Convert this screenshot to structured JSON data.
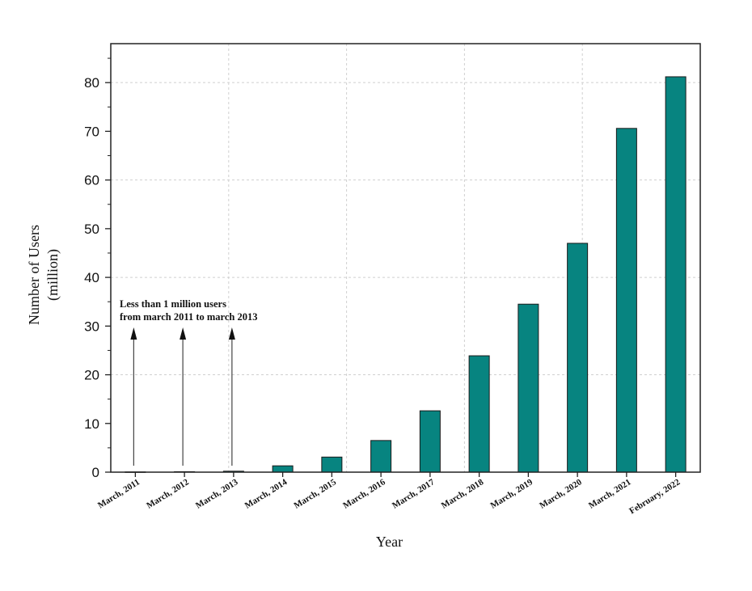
{
  "chart_data": {
    "type": "bar",
    "title": "",
    "xlabel": "Year",
    "ylabel_line1": "Number of Users",
    "ylabel_line2": "(million)",
    "categories": [
      "March, 2011",
      "March, 2012",
      "March, 2013",
      "March, 2014",
      "March, 2015",
      "March, 2016",
      "March, 2017",
      "March, 2018",
      "March, 2019",
      "March, 2020",
      "March, 2021",
      "February, 2022"
    ],
    "values": [
      0.05,
      0.1,
      0.2,
      1.3,
      3.1,
      6.5,
      12.6,
      23.9,
      34.5,
      47.0,
      70.6,
      81.2
    ],
    "ylim": [
      0,
      88
    ],
    "yticks": [
      "0",
      "10",
      "20",
      "30",
      "40",
      "50",
      "60",
      "70",
      "80"
    ],
    "grid": true,
    "bar_color": "#078480",
    "annotation": {
      "line1": "Less than 1 million users",
      "line2": "from march 2011 to march 2013",
      "arrow_categories": [
        0,
        1,
        2
      ]
    }
  }
}
